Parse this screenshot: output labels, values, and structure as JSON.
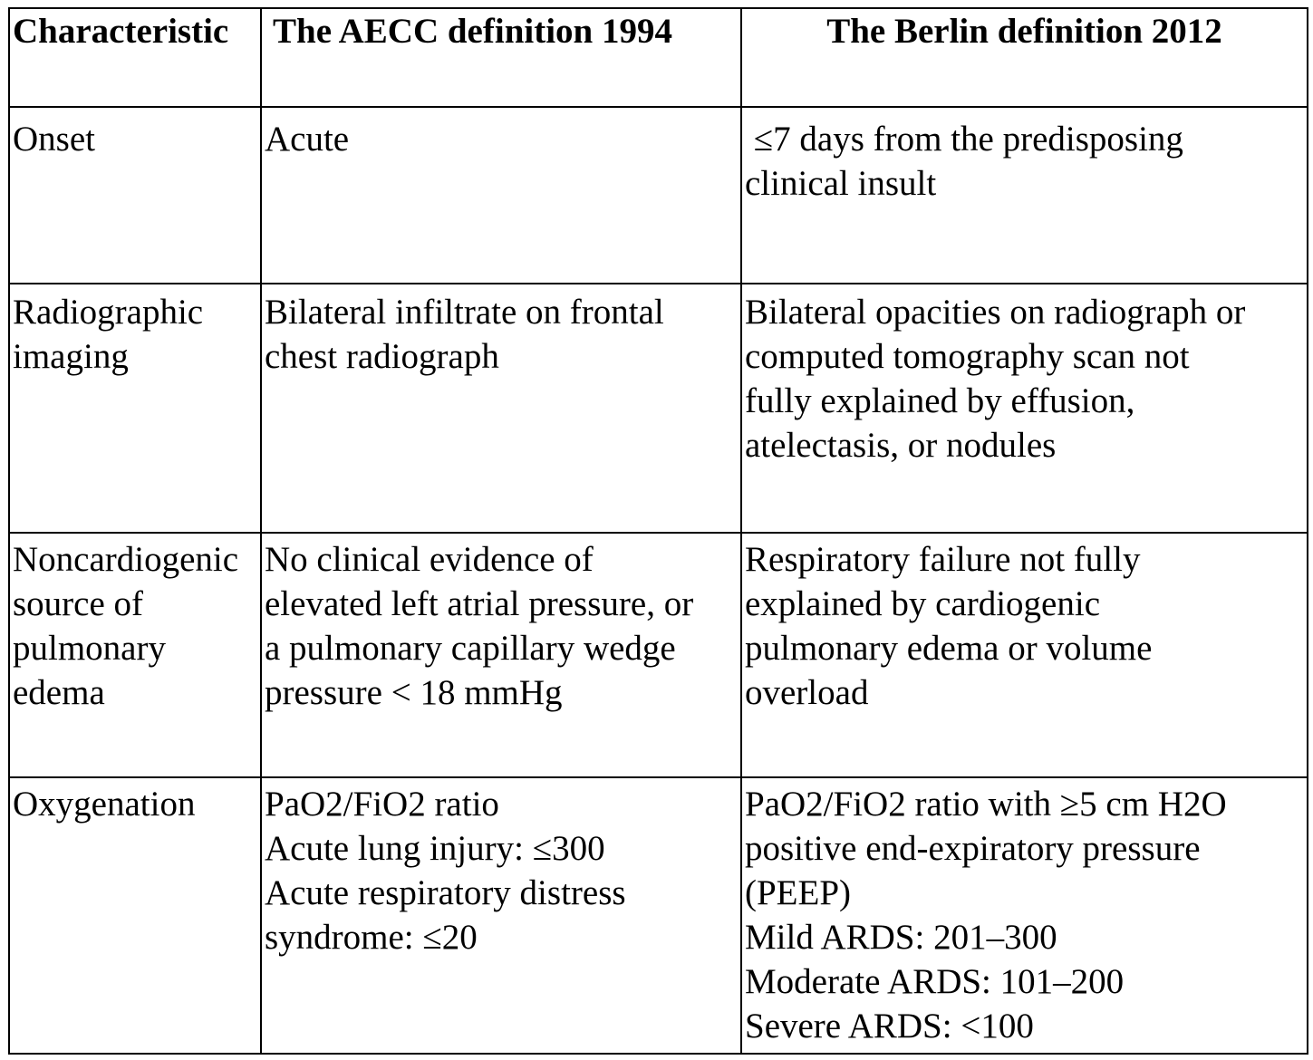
{
  "table": {
    "headers": {
      "characteristic": "Characteristic",
      "aecc": "The AECC definition 1994",
      "berlin": "The Berlin definition 2012"
    },
    "rows": [
      {
        "characteristic": [
          "Onset"
        ],
        "aecc": [
          "Acute"
        ],
        "berlin": [
          " ≤7 days from the predisposing",
          "clinical insult"
        ]
      },
      {
        "characteristic": [
          "Radiographic",
          "imaging"
        ],
        "aecc": [
          "Bilateral infiltrate on frontal",
          "chest radiograph"
        ],
        "berlin": [
          "Bilateral opacities on radiograph or",
          "computed tomography scan not",
          "fully explained by effusion,",
          "atelectasis, or nodules"
        ]
      },
      {
        "characteristic": [
          "Noncardiogenic",
          "source of",
          "pulmonary",
          "edema"
        ],
        "aecc": [
          "No clinical evidence of",
          "elevated left atrial pressure, or",
          "a pulmonary capillary wedge",
          "pressure < 18 mmHg"
        ],
        "berlin": [
          "Respiratory failure not fully",
          "explained by cardiogenic",
          "pulmonary edema or volume",
          "overload"
        ]
      },
      {
        "characteristic": [
          "Oxygenation"
        ],
        "aecc": [
          "PaO2/FiO2 ratio",
          "Acute lung injury: ≤300",
          "Acute respiratory distress",
          "syndrome: ≤20"
        ],
        "berlin": [
          "PaO2/FiO2 ratio with ≥5 cm H2O",
          "positive end-expiratory pressure",
          "(PEEP)",
          "Mild ARDS: 201–300",
          "Moderate ARDS: 101–200",
          "Severe ARDS: <100"
        ]
      }
    ]
  }
}
